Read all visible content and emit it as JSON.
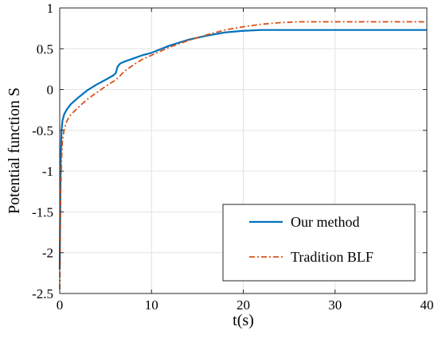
{
  "chart_data": {
    "type": "line",
    "title": "",
    "xlabel": "t(s)",
    "ylabel": "Potential function S",
    "xlim": [
      0,
      40
    ],
    "ylim": [
      -2.5,
      1
    ],
    "xticks": [
      0,
      10,
      20,
      30,
      40
    ],
    "yticks": [
      -2.5,
      -2,
      -1.5,
      -1,
      -0.5,
      0,
      0.5,
      1
    ],
    "xtick_labels": [
      "0",
      "10",
      "20",
      "30",
      "40"
    ],
    "ytick_labels": [
      "-2.5",
      "-2",
      "-1.5",
      "-1",
      "-0.5",
      "0",
      "0.5",
      "1"
    ],
    "grid": true,
    "legend_position": "bottom-right",
    "series": [
      {
        "name": "Our method",
        "color": "#0072BD",
        "style": "solid",
        "x": [
          0,
          0.05,
          0.1,
          0.2,
          0.3,
          0.5,
          0.8,
          1.2,
          2,
          3,
          4,
          5,
          5.8,
          6.1,
          6.3,
          6.6,
          7,
          8,
          9,
          10,
          12,
          14,
          16,
          18,
          20,
          22,
          25,
          30,
          35,
          40
        ],
        "y": [
          -2.2,
          -1.5,
          -0.9,
          -0.5,
          -0.38,
          -0.3,
          -0.24,
          -0.18,
          -0.1,
          -0.01,
          0.06,
          0.12,
          0.17,
          0.2,
          0.28,
          0.32,
          0.34,
          0.38,
          0.42,
          0.45,
          0.54,
          0.61,
          0.66,
          0.7,
          0.72,
          0.73,
          0.73,
          0.73,
          0.73,
          0.73
        ]
      },
      {
        "name": "Tradition BLF",
        "color": "#D95319",
        "style": "dashdot",
        "x": [
          0,
          0.05,
          0.1,
          0.2,
          0.3,
          0.5,
          0.8,
          1.2,
          2,
          3,
          4,
          5,
          6,
          6.5,
          7,
          8,
          9,
          10,
          12,
          14,
          16,
          18,
          20,
          22,
          24,
          26,
          30,
          35,
          40
        ],
        "y": [
          -2.45,
          -1.9,
          -1.3,
          -0.85,
          -0.62,
          -0.48,
          -0.38,
          -0.31,
          -0.22,
          -0.12,
          -0.04,
          0.04,
          0.11,
          0.16,
          0.22,
          0.3,
          0.37,
          0.42,
          0.52,
          0.6,
          0.67,
          0.73,
          0.77,
          0.8,
          0.82,
          0.83,
          0.83,
          0.83,
          0.83
        ]
      }
    ]
  }
}
